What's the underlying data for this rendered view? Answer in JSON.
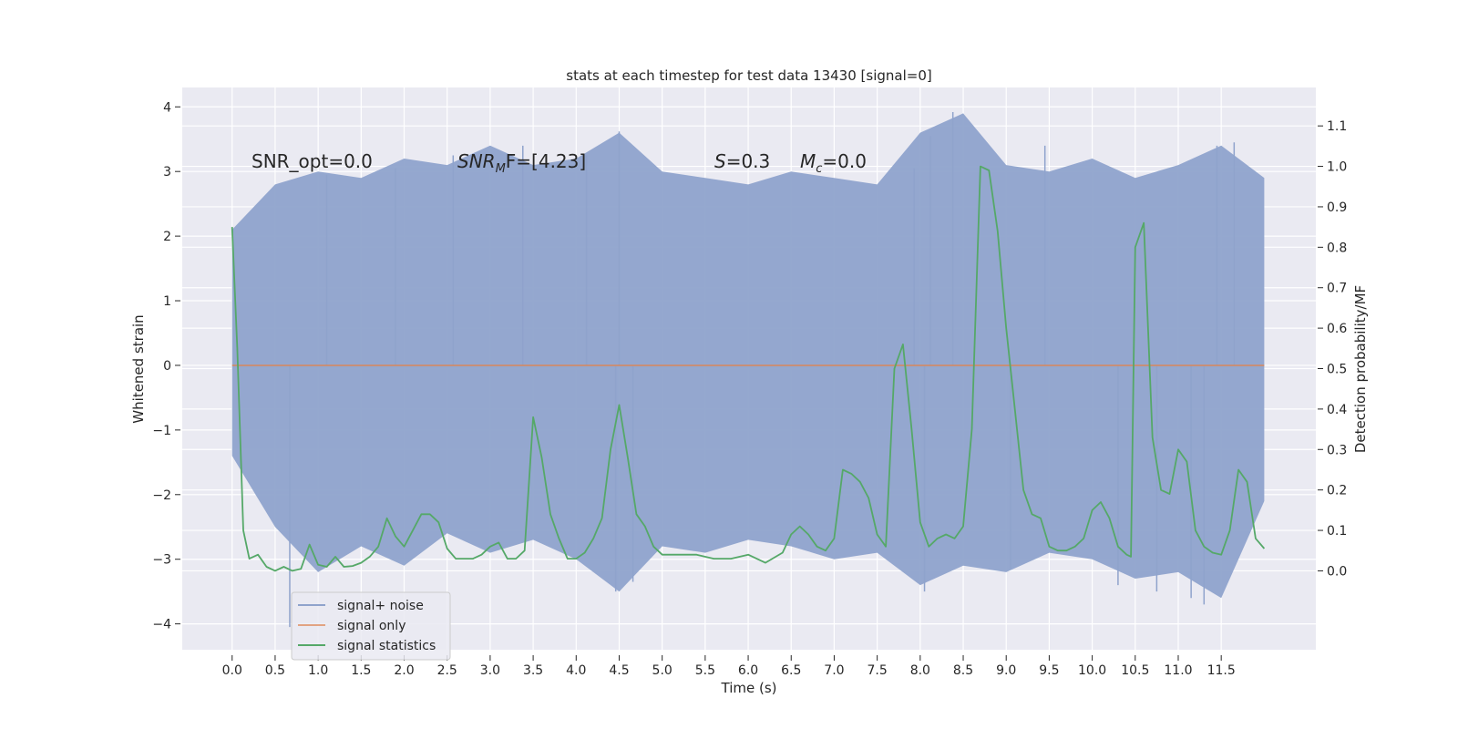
{
  "chart_data": {
    "type": "line",
    "title": "stats at each timestep for test data 13430 [signal=0]",
    "xlabel": "Time (s)",
    "ylabel_left": "Whitened strain",
    "ylabel_right": "Detection probability/MF",
    "xlim": [
      -0.58,
      12.6
    ],
    "ylim_left": [
      -4.4,
      4.3
    ],
    "ylim_right": [
      -0.195,
      1.195
    ],
    "x_ticks": [
      0.0,
      0.5,
      1.0,
      1.5,
      2.0,
      2.5,
      3.0,
      3.5,
      4.0,
      4.5,
      5.0,
      5.5,
      6.0,
      6.5,
      7.0,
      7.5,
      8.0,
      8.5,
      9.0,
      9.5,
      10.0,
      10.5,
      11.0,
      11.5
    ],
    "x_tick_labels": [
      "0.0",
      "0.5",
      "1.0",
      "1.5",
      "2.0",
      "2.5",
      "3.0",
      "3.5",
      "4.0",
      "4.5",
      "5.0",
      "5.5",
      "6.0",
      "6.5",
      "7.0",
      "7.5",
      "8.0",
      "8.5",
      "9.0",
      "9.5",
      "10.0",
      "10.5",
      "11.0",
      "11.5"
    ],
    "y_left_ticks": [
      -4,
      -3,
      -2,
      -1,
      0,
      1,
      2,
      3,
      4
    ],
    "y_left_tick_labels": [
      "−4",
      "−3",
      "−2",
      "−1",
      "0",
      "1",
      "2",
      "3",
      "4"
    ],
    "y_right_ticks": [
      0.0,
      0.1,
      0.2,
      0.3,
      0.4,
      0.5,
      0.6,
      0.7,
      0.8,
      0.9,
      1.0,
      1.1
    ],
    "y_right_tick_labels": [
      "0.0",
      "0.1",
      "0.2",
      "0.3",
      "0.4",
      "0.5",
      "0.6",
      "0.7",
      "0.8",
      "0.9",
      "1.0",
      "1.1"
    ],
    "grid": true,
    "legend_position": "lower-left",
    "annotations": {
      "snr_opt": "SNR_opt=0.0",
      "snr_mf_main": "SNR",
      "snr_mf_sub": "M",
      "snr_mf_rest": "F=[4.23]",
      "s_var": "S",
      "s_rest": "=0.3",
      "mc_var": "M",
      "mc_sub": "c",
      "mc_rest": "=0.0"
    },
    "series": [
      {
        "name": "signal+ noise",
        "axis": "left",
        "color": "#8fa3cc",
        "x_range": [
          0.0,
          12.0
        ],
        "envelope": {
          "x": [
            0.0,
            0.5,
            1.0,
            1.5,
            2.0,
            2.5,
            3.0,
            3.5,
            4.0,
            4.5,
            5.0,
            5.5,
            6.0,
            6.5,
            7.0,
            7.5,
            8.0,
            8.5,
            9.0,
            9.5,
            10.0,
            10.5,
            11.0,
            11.5,
            12.0
          ],
          "upper": [
            2.1,
            2.8,
            3.0,
            2.9,
            3.2,
            3.1,
            3.4,
            3.1,
            3.2,
            3.6,
            3.0,
            2.9,
            2.8,
            3.0,
            2.9,
            2.8,
            3.6,
            3.9,
            3.1,
            3.0,
            3.2,
            2.9,
            3.1,
            3.4,
            2.9
          ],
          "lower": [
            -1.4,
            -2.5,
            -3.2,
            -2.8,
            -3.1,
            -2.6,
            -2.9,
            -2.7,
            -3.0,
            -3.5,
            -2.8,
            -2.9,
            -2.7,
            -2.8,
            -3.0,
            -2.9,
            -3.4,
            -3.1,
            -3.2,
            -2.9,
            -3.0,
            -3.3,
            -3.2,
            -3.6,
            -2.1
          ]
        },
        "spikes": [
          {
            "x": 0.67,
            "y": -4.05
          },
          {
            "x": 1.1,
            "y": 2.95
          },
          {
            "x": 1.9,
            "y": 3.05
          },
          {
            "x": 2.57,
            "y": 3.25
          },
          {
            "x": 3.38,
            "y": 3.4
          },
          {
            "x": 4.12,
            "y": 3.25
          },
          {
            "x": 4.5,
            "y": 3.62
          },
          {
            "x": 4.46,
            "y": -3.5
          },
          {
            "x": 4.66,
            "y": -3.35
          },
          {
            "x": 7.93,
            "y": 3.05
          },
          {
            "x": 8.05,
            "y": -3.5
          },
          {
            "x": 8.12,
            "y": 3.55
          },
          {
            "x": 8.38,
            "y": 3.92
          },
          {
            "x": 9.05,
            "y": -3.15
          },
          {
            "x": 9.45,
            "y": 3.4
          },
          {
            "x": 10.3,
            "y": -3.4
          },
          {
            "x": 10.75,
            "y": -3.5
          },
          {
            "x": 11.15,
            "y": -3.6
          },
          {
            "x": 11.3,
            "y": -3.7
          },
          {
            "x": 11.45,
            "y": 3.4
          },
          {
            "x": 11.65,
            "y": 3.45
          }
        ]
      },
      {
        "name": "signal only",
        "axis": "left",
        "color": "#dd8452",
        "x": [
          0.0,
          12.0
        ],
        "y": [
          0.0,
          0.0
        ]
      },
      {
        "name": "signal statistics",
        "axis": "right",
        "color": "#55a868",
        "x": [
          0.0,
          0.06,
          0.13,
          0.2,
          0.3,
          0.4,
          0.5,
          0.6,
          0.7,
          0.8,
          0.9,
          1.0,
          1.1,
          1.2,
          1.3,
          1.4,
          1.5,
          1.6,
          1.7,
          1.8,
          1.9,
          2.0,
          2.1,
          2.2,
          2.3,
          2.4,
          2.5,
          2.6,
          2.7,
          2.8,
          2.9,
          3.0,
          3.1,
          3.2,
          3.3,
          3.4,
          3.5,
          3.6,
          3.7,
          3.8,
          3.9,
          4.0,
          4.1,
          4.2,
          4.3,
          4.4,
          4.5,
          4.6,
          4.7,
          4.8,
          4.9,
          5.0,
          5.2,
          5.4,
          5.6,
          5.8,
          6.0,
          6.2,
          6.4,
          6.5,
          6.6,
          6.7,
          6.8,
          6.9,
          7.0,
          7.1,
          7.2,
          7.3,
          7.4,
          7.5,
          7.6,
          7.7,
          7.8,
          7.9,
          8.0,
          8.1,
          8.2,
          8.3,
          8.4,
          8.5,
          8.6,
          8.7,
          8.8,
          8.9,
          9.0,
          9.1,
          9.2,
          9.3,
          9.4,
          9.5,
          9.6,
          9.7,
          9.8,
          9.9,
          10.0,
          10.1,
          10.2,
          10.3,
          10.4,
          10.45,
          10.5,
          10.6,
          10.7,
          10.8,
          10.9,
          11.0,
          11.1,
          11.2,
          11.3,
          11.4,
          11.5,
          11.6,
          11.7,
          11.8,
          11.9,
          12.0
        ],
        "y": [
          0.85,
          0.55,
          0.1,
          0.03,
          0.04,
          0.01,
          0.0,
          0.01,
          0.0,
          0.005,
          0.065,
          0.015,
          0.01,
          0.035,
          0.01,
          0.012,
          0.02,
          0.035,
          0.06,
          0.13,
          0.085,
          0.06,
          0.1,
          0.14,
          0.14,
          0.12,
          0.055,
          0.03,
          0.03,
          0.03,
          0.04,
          0.06,
          0.07,
          0.03,
          0.03,
          0.05,
          0.38,
          0.28,
          0.14,
          0.08,
          0.03,
          0.03,
          0.045,
          0.08,
          0.13,
          0.3,
          0.41,
          0.28,
          0.14,
          0.11,
          0.06,
          0.04,
          0.04,
          0.04,
          0.03,
          0.03,
          0.04,
          0.02,
          0.045,
          0.09,
          0.11,
          0.09,
          0.06,
          0.05,
          0.08,
          0.25,
          0.24,
          0.22,
          0.18,
          0.09,
          0.06,
          0.5,
          0.56,
          0.35,
          0.12,
          0.06,
          0.08,
          0.09,
          0.08,
          0.11,
          0.35,
          1.0,
          0.99,
          0.84,
          0.6,
          0.4,
          0.2,
          0.14,
          0.13,
          0.06,
          0.05,
          0.05,
          0.06,
          0.08,
          0.15,
          0.17,
          0.13,
          0.06,
          0.04,
          0.035,
          0.8,
          0.86,
          0.33,
          0.2,
          0.19,
          0.3,
          0.27,
          0.1,
          0.06,
          0.045,
          0.04,
          0.1,
          0.25,
          0.22,
          0.08,
          0.055
        ]
      }
    ]
  }
}
